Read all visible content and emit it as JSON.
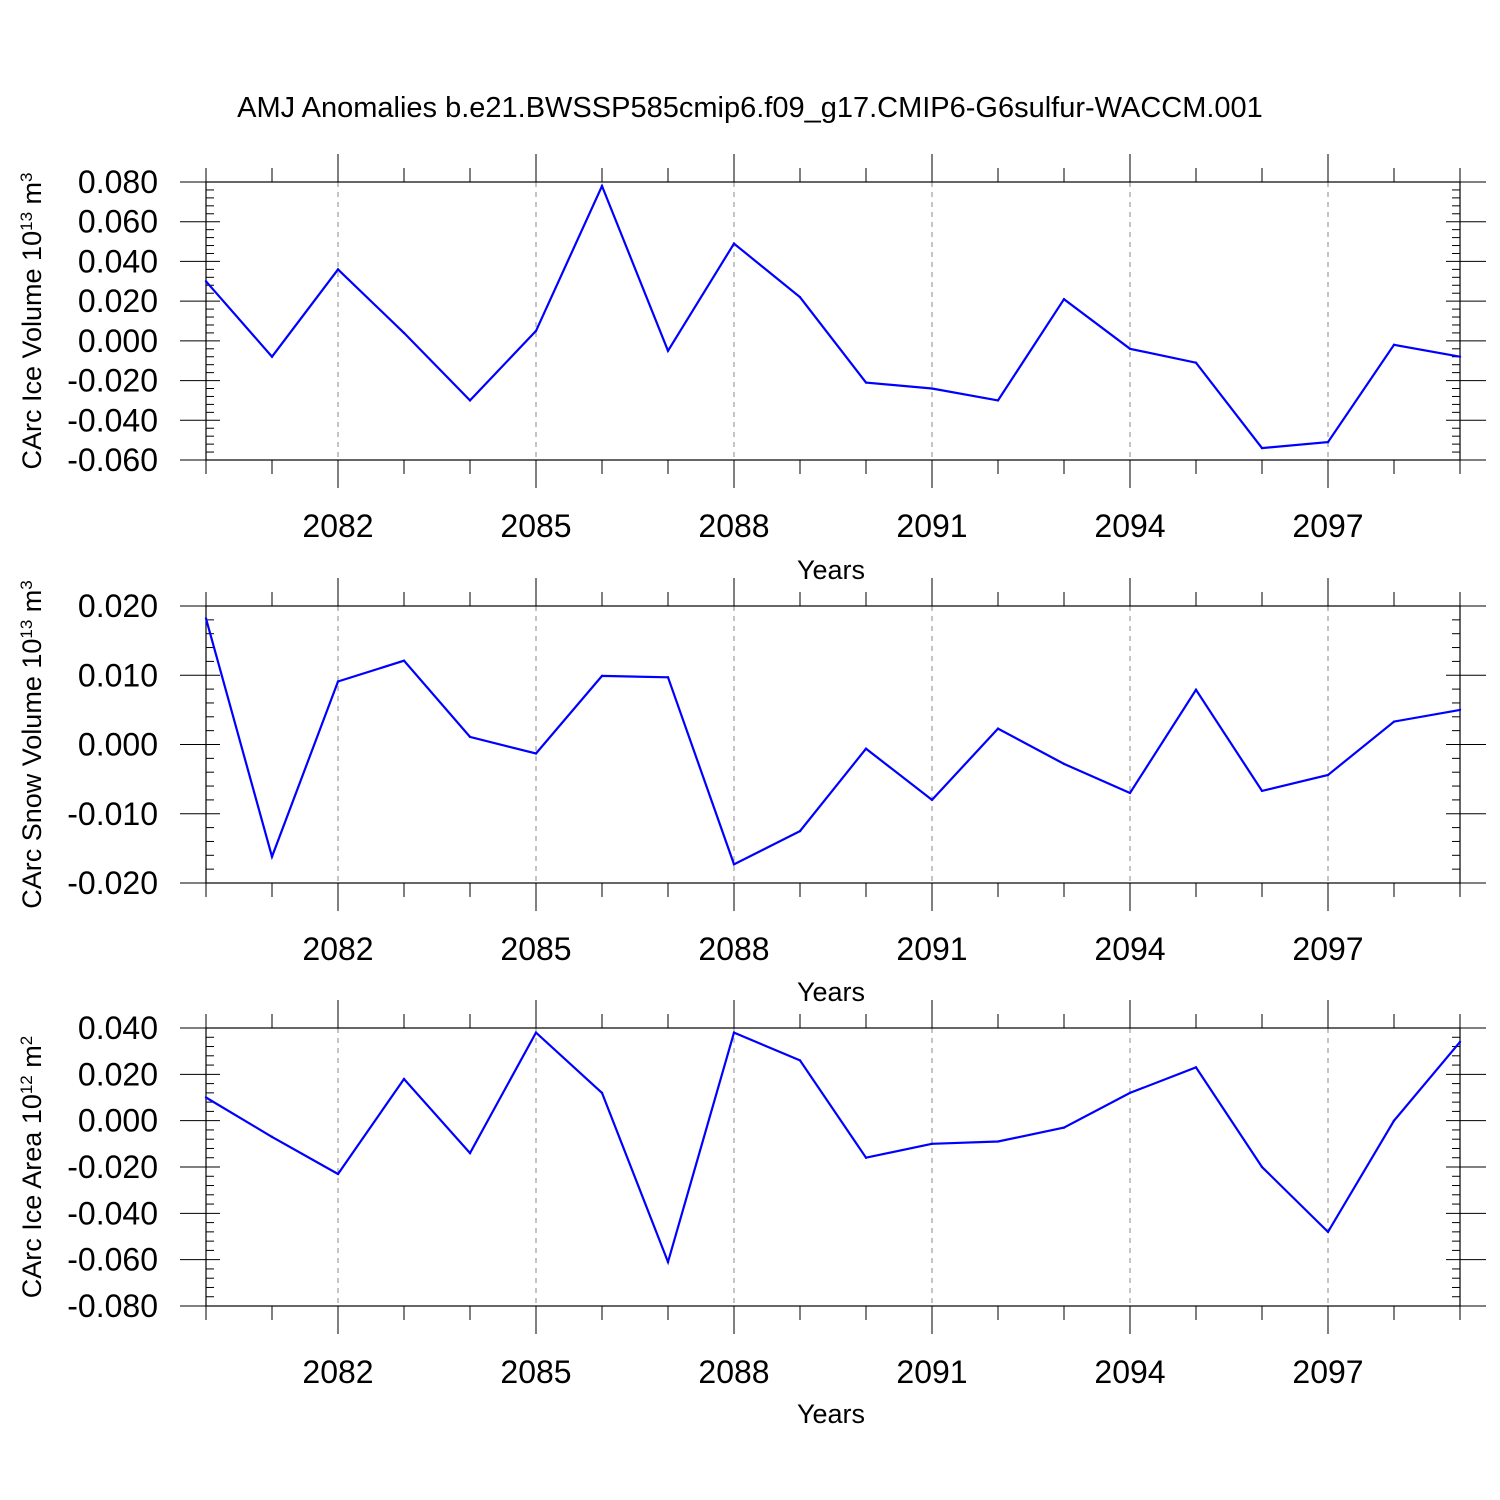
{
  "title": "AMJ Anomalies b.e21.BWSSP585cmip6.f09_g17.CMIP6-G6sulfur-WACCM.001",
  "colors": {
    "line": "#0000ff",
    "frame": "#000000",
    "grid": "#888888"
  },
  "chart_data": [
    {
      "type": "line",
      "ylabel_main": "CArc Ice Volume 10",
      "ylabel_exp": "13",
      "ylabel_unit": "m",
      "ylabel_unit_exp": "3",
      "xlabel": "Years",
      "xlim": [
        2080,
        2099
      ],
      "xticks": [
        2082,
        2085,
        2088,
        2091,
        2094,
        2097
      ],
      "xtick_labels": [
        "2082",
        "2085",
        "2088",
        "2091",
        "2094",
        "2097"
      ],
      "ylim": [
        -0.06,
        0.08
      ],
      "yticks": [
        -0.06,
        -0.04,
        -0.02,
        0.0,
        0.02,
        0.04,
        0.06,
        0.08
      ],
      "ytick_labels": [
        "-0.060",
        "-0.040",
        "-0.020",
        "0.000",
        "0.020",
        "0.040",
        "0.060",
        "0.080"
      ],
      "grid": "vertical dashed at major x ticks",
      "x": [
        2080,
        2081,
        2082,
        2083,
        2084,
        2085,
        2086,
        2087,
        2088,
        2089,
        2090,
        2091,
        2092,
        2093,
        2094,
        2095,
        2096,
        2097,
        2098,
        2099
      ],
      "y": [
        0.03,
        -0.008,
        0.036,
        0.004,
        -0.03,
        0.005,
        0.078,
        -0.005,
        0.049,
        0.022,
        -0.021,
        -0.024,
        -0.03,
        0.021,
        -0.004,
        -0.011,
        -0.054,
        -0.051,
        -0.002,
        -0.008
      ]
    },
    {
      "type": "line",
      "ylabel_main": "CArc Snow Volume 10",
      "ylabel_exp": "13",
      "ylabel_unit": "m",
      "ylabel_unit_exp": "3",
      "xlabel": "Years",
      "xlim": [
        2080,
        2099
      ],
      "xticks": [
        2082,
        2085,
        2088,
        2091,
        2094,
        2097
      ],
      "xtick_labels": [
        "2082",
        "2085",
        "2088",
        "2091",
        "2094",
        "2097"
      ],
      "ylim": [
        -0.02,
        0.02
      ],
      "yticks": [
        -0.02,
        -0.01,
        0.0,
        0.01,
        0.02
      ],
      "ytick_labels": [
        "-0.020",
        "-0.010",
        "0.000",
        "0.010",
        "0.020"
      ],
      "grid": "vertical dashed at major x ticks",
      "x": [
        2080,
        2081,
        2082,
        2083,
        2084,
        2085,
        2086,
        2087,
        2088,
        2089,
        2090,
        2091,
        2092,
        2093,
        2094,
        2095,
        2096,
        2097,
        2098,
        2099
      ],
      "y": [
        0.0182,
        -0.0162,
        0.0091,
        0.0121,
        0.0011,
        -0.0013,
        0.0099,
        0.0097,
        -0.0173,
        -0.0125,
        -0.0006,
        -0.008,
        0.0023,
        -0.0028,
        -0.007,
        0.0079,
        -0.0067,
        -0.0044,
        0.0033,
        0.005
      ]
    },
    {
      "type": "line",
      "ylabel_main": "CArc Ice Area 10",
      "ylabel_exp": "12",
      "ylabel_unit": "m",
      "ylabel_unit_exp": "2",
      "xlabel": "Years",
      "xlim": [
        2080,
        2099
      ],
      "xticks": [
        2082,
        2085,
        2088,
        2091,
        2094,
        2097
      ],
      "xtick_labels": [
        "2082",
        "2085",
        "2088",
        "2091",
        "2094",
        "2097"
      ],
      "ylim": [
        -0.08,
        0.04
      ],
      "yticks": [
        -0.08,
        -0.06,
        -0.04,
        -0.02,
        0.0,
        0.02,
        0.04
      ],
      "ytick_labels": [
        "-0.080",
        "-0.060",
        "-0.040",
        "-0.020",
        "0.000",
        "0.020",
        "0.040"
      ],
      "grid": "vertical dashed at major x ticks",
      "x": [
        2080,
        2081,
        2082,
        2083,
        2084,
        2085,
        2086,
        2087,
        2088,
        2089,
        2090,
        2091,
        2092,
        2093,
        2094,
        2095,
        2096,
        2097,
        2098,
        2099
      ],
      "y": [
        0.01,
        -0.007,
        -0.023,
        0.018,
        -0.014,
        0.038,
        0.012,
        -0.061,
        0.038,
        0.026,
        -0.016,
        -0.01,
        -0.009,
        -0.003,
        0.012,
        0.023,
        -0.02,
        -0.048,
        0.0,
        0.034
      ]
    }
  ]
}
